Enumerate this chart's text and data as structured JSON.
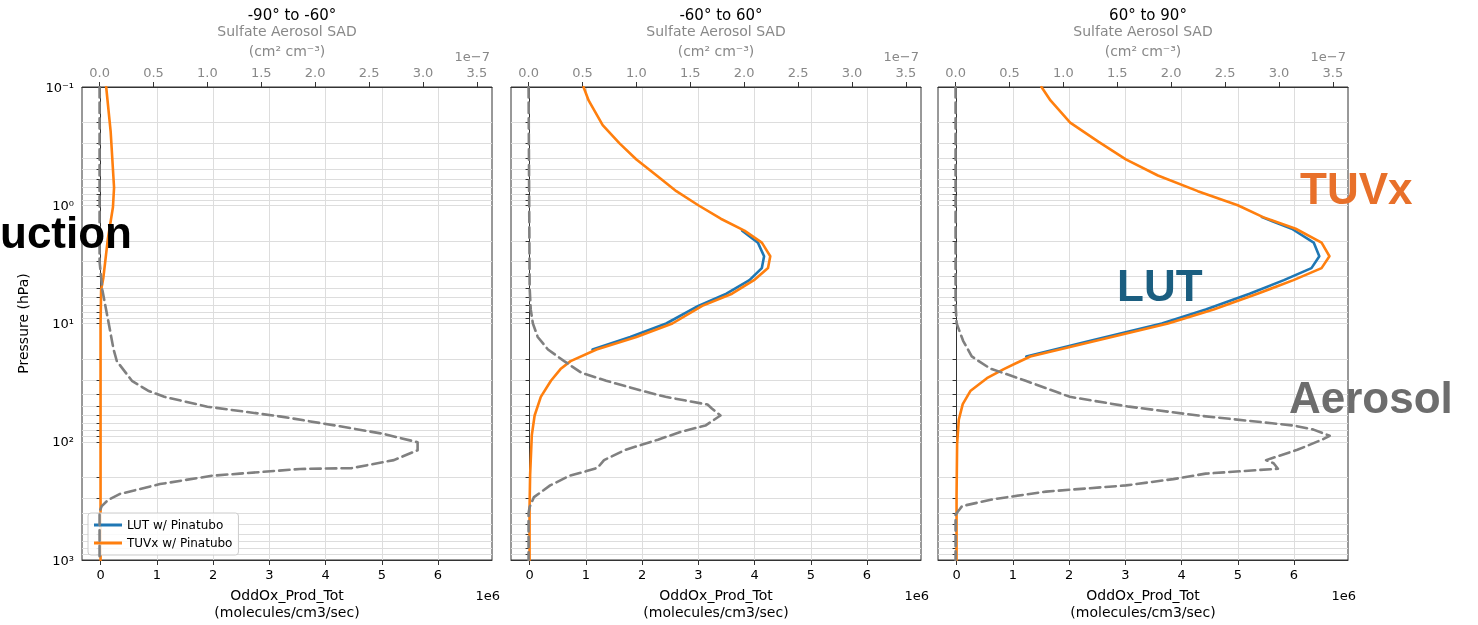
{
  "chart_data": [
    {
      "type": "line",
      "title": "-90° to -60°",
      "xlabel": "OddOx_Prod_Tot\n(molecules/cm3/sec)",
      "x2label": "Sulfate Aerosol SAD\n(cm² cm⁻³)",
      "ylabel": "Pressure (hPa)",
      "log": "y",
      "grid": true,
      "marker": "none",
      "legend": "bottom left",
      "xlim": [
        -0.33,
        6.96
      ],
      "xticks": [
        0,
        1,
        2,
        3,
        4,
        5,
        6
      ],
      "x2lim": [
        -0.163,
        3.64
      ],
      "x2ticks": [
        {
          "value": 0,
          "label": "0.0"
        },
        {
          "value": 0.5,
          "label": "0.5"
        },
        {
          "value": 1,
          "label": "1.0"
        },
        {
          "value": 1.5,
          "label": "1.5"
        },
        {
          "value": 2,
          "label": "2.0"
        },
        {
          "value": 2.5,
          "label": "2.5"
        },
        {
          "value": 3,
          "label": "3.0"
        },
        {
          "value": 3.5,
          "label": "3.5"
        }
      ],
      "ylim": [
        1000,
        0.1
      ],
      "yticks": [
        {
          "value": 0.1,
          "label": "10⁻¹"
        },
        {
          "value": 0.2,
          "label": null
        },
        {
          "value": 0.3,
          "label": null
        },
        {
          "value": 0.4,
          "label": null
        },
        {
          "value": 0.5,
          "label": null
        },
        {
          "value": 0.6,
          "label": null
        },
        {
          "value": 0.7,
          "label": null
        },
        {
          "value": 0.8,
          "label": null
        },
        {
          "value": 0.9,
          "label": null
        },
        {
          "value": 1,
          "label": "10⁰"
        },
        {
          "value": 2,
          "label": null
        },
        {
          "value": 3,
          "label": null
        },
        {
          "value": 4,
          "label": null
        },
        {
          "value": 5,
          "label": null
        },
        {
          "value": 6,
          "label": null
        },
        {
          "value": 7,
          "label": null
        },
        {
          "value": 8,
          "label": null
        },
        {
          "value": 9,
          "label": null
        },
        {
          "value": 10,
          "label": "10¹"
        },
        {
          "value": 20,
          "label": null
        },
        {
          "value": 30,
          "label": null
        },
        {
          "value": 40,
          "label": null
        },
        {
          "value": 50,
          "label": null
        },
        {
          "value": 60,
          "label": null
        },
        {
          "value": 70,
          "label": null
        },
        {
          "value": 80,
          "label": null
        },
        {
          "value": 90,
          "label": null
        },
        {
          "value": 100,
          "label": "10²"
        },
        {
          "value": 200,
          "label": null
        },
        {
          "value": 300,
          "label": null
        },
        {
          "value": 400,
          "label": null
        },
        {
          "value": 500,
          "label": null
        },
        {
          "value": 600,
          "label": null
        },
        {
          "value": 700,
          "label": null
        },
        {
          "value": 800,
          "label": null
        },
        {
          "value": 900,
          "label": null
        },
        {
          "value": 1000,
          "label": "10³"
        }
      ],
      "annotations": [
        "1e6",
        "1e−7",
        "uction"
      ],
      "series": [
        {
          "name": "LUT w/ Pinatubo",
          "color": "#1f77b4"
        },
        {
          "name": "TUVx w/ Pinatubo",
          "color": "#ff7f0e",
          "x": [
            0.1,
            0.18,
            0.24,
            0.22,
            0.13,
            0.05,
            0.01,
            0,
            0,
            0,
            0
          ],
          "values": [
            0.1,
            0.24,
            0.71,
            1.04,
            1.92,
            4.1,
            5.2,
            10,
            100,
            300,
            1000
          ]
        },
        {
          "color": "#808080",
          "axis": "x2",
          "line_style": "dashed",
          "x": [
            0,
            0,
            0.026,
            0.085,
            0.13,
            0.16,
            0.3,
            0.45,
            0.6,
            1.0,
            1.67,
            2.23,
            2.64,
            2.95,
            2.95,
            2.73,
            2.34,
            1.86,
            1.3,
            1.04,
            0.56,
            0.19,
            0.08,
            0.02,
            0,
            0
          ],
          "values": [
            0.1,
            3,
            5.2,
            10,
            16.6,
            20.8,
            30.5,
            37,
            41.7,
            50.5,
            61,
            74,
            86,
            101,
            118,
            143,
            167,
            170,
            186,
            194,
            228,
            276,
            310,
            350,
            390,
            1000
          ]
        }
      ]
    },
    {
      "type": "line",
      "title": "-60° to 60°",
      "xlabel": "OddOx_Prod_Tot\n(molecules/cm3/sec)",
      "x2label": "Sulfate Aerosol SAD\n(cm² cm⁻³)",
      "log": "y",
      "grid": true,
      "marker": "none",
      "tick_labels": "x",
      "xlim": [
        -0.33,
        6.96
      ],
      "xticks": [
        0,
        1,
        2,
        3,
        4,
        5,
        6
      ],
      "x2lim": [
        -0.163,
        3.64
      ],
      "x2ticks": [
        {
          "value": 0,
          "label": "0.0"
        },
        {
          "value": 0.5,
          "label": "0.5"
        },
        {
          "value": 1,
          "label": "1.0"
        },
        {
          "value": 1.5,
          "label": "1.5"
        },
        {
          "value": 2,
          "label": "2.0"
        },
        {
          "value": 2.5,
          "label": "2.5"
        },
        {
          "value": 3,
          "label": "3.0"
        },
        {
          "value": 3.5,
          "label": "3.5"
        }
      ],
      "ylim": [
        1000,
        0.1
      ],
      "yticks": [
        {
          "value": 0.1,
          "label": null
        },
        {
          "value": 0.2,
          "label": null
        },
        {
          "value": 0.3,
          "label": null
        },
        {
          "value": 0.4,
          "label": null
        },
        {
          "value": 0.5,
          "label": null
        },
        {
          "value": 0.6,
          "label": null
        },
        {
          "value": 0.7,
          "label": null
        },
        {
          "value": 0.8,
          "label": null
        },
        {
          "value": 0.9,
          "label": null
        },
        {
          "value": 1,
          "label": null
        },
        {
          "value": 2,
          "label": null
        },
        {
          "value": 3,
          "label": null
        },
        {
          "value": 4,
          "label": null
        },
        {
          "value": 5,
          "label": null
        },
        {
          "value": 6,
          "label": null
        },
        {
          "value": 7,
          "label": null
        },
        {
          "value": 8,
          "label": null
        },
        {
          "value": 9,
          "label": null
        },
        {
          "value": 10,
          "label": null
        },
        {
          "value": 20,
          "label": null
        },
        {
          "value": 30,
          "label": null
        },
        {
          "value": 40,
          "label": null
        },
        {
          "value": 50,
          "label": null
        },
        {
          "value": 60,
          "label": null
        },
        {
          "value": 70,
          "label": null
        },
        {
          "value": 80,
          "label": null
        },
        {
          "value": 90,
          "label": null
        },
        {
          "value": 100,
          "label": null
        },
        {
          "value": 200,
          "label": null
        },
        {
          "value": 300,
          "label": null
        },
        {
          "value": 400,
          "label": null
        },
        {
          "value": 500,
          "label": null
        },
        {
          "value": 600,
          "label": null
        },
        {
          "value": 700,
          "label": null
        },
        {
          "value": 800,
          "label": null
        },
        {
          "value": 900,
          "label": null
        },
        {
          "value": 1000,
          "label": null
        }
      ],
      "annotations": [
        "1e6",
        "1e−7"
      ],
      "series": [
        {
          "color": "#1f77b4",
          "x": [
            3.78,
            4.06,
            4.17,
            4.13,
            3.91,
            3.5,
            3.0,
            2.43,
            1.79,
            1.12
          ],
          "values": [
            1.64,
            2.07,
            2.7,
            3.4,
            4.3,
            5.6,
            7.1,
            10,
            13,
            16.6
          ]
        },
        {
          "color": "#ff7f0e",
          "x": [
            0.96,
            1.05,
            1.3,
            1.6,
            1.9,
            2.26,
            2.61,
            3.0,
            3.4,
            3.82,
            4.13,
            4.28,
            4.24,
            3.99,
            3.6,
            3.07,
            2.54,
            1.9,
            1.19,
            0.73,
            0.55,
            0.38,
            0.2,
            0.09,
            0.04,
            0.01,
            0,
            0
          ],
          "values": [
            0.1,
            0.13,
            0.21,
            0.3,
            0.41,
            0.56,
            0.76,
            1.0,
            1.3,
            1.64,
            2.07,
            2.7,
            3.4,
            4.3,
            5.6,
            7.1,
            10,
            13,
            16.6,
            20.8,
            24.3,
            30.5,
            41.7,
            60,
            88,
            190,
            356,
            1000
          ]
        },
        {
          "color": "#808080",
          "axis": "x2",
          "line_style": "dashed",
          "x": [
            0,
            0.01,
            0.02,
            0.04,
            0.085,
            0.18,
            0.33,
            0.49,
            0.72,
            1.05,
            1.27,
            1.66,
            1.7,
            1.78,
            1.64,
            1.42,
            1.2,
            0.9,
            0.7,
            0.64,
            0.53,
            0.38,
            0.2,
            0.05,
            0.01,
            0,
            0
          ],
          "values": [
            0.1,
            5,
            7.6,
            10,
            13,
            16.6,
            20.8,
            26.1,
            30.5,
            37,
            41.7,
            48.5,
            52.3,
            60,
            73,
            82,
            96,
            117,
            143,
            166,
            178,
            194,
            234,
            294,
            356,
            400,
            1000
          ]
        }
      ]
    },
    {
      "type": "line",
      "title": "60° to 90°",
      "xlabel": "OddOx_Prod_Tot\n(molecules/cm3/sec)",
      "x2label": "Sulfate Aerosol SAD\n(cm² cm⁻³)",
      "log": "y",
      "grid": true,
      "marker": "none",
      "tick_labels": "x",
      "xlim": [
        -0.33,
        6.96
      ],
      "xticks": [
        0,
        1,
        2,
        3,
        4,
        5,
        6
      ],
      "x2lim": [
        -0.163,
        3.64
      ],
      "x2ticks": [
        {
          "value": 0,
          "label": "0.0"
        },
        {
          "value": 0.5,
          "label": "0.5"
        },
        {
          "value": 1,
          "label": "1.0"
        },
        {
          "value": 1.5,
          "label": "1.5"
        },
        {
          "value": 2,
          "label": "2.0"
        },
        {
          "value": 2.5,
          "label": "2.5"
        },
        {
          "value": 3,
          "label": "3.0"
        },
        {
          "value": 3.5,
          "label": "3.5"
        }
      ],
      "ylim": [
        1000,
        0.1
      ],
      "yticks": [
        {
          "value": 0.1,
          "label": null
        },
        {
          "value": 0.2,
          "label": null
        },
        {
          "value": 0.3,
          "label": null
        },
        {
          "value": 0.4,
          "label": null
        },
        {
          "value": 0.5,
          "label": null
        },
        {
          "value": 0.6,
          "label": null
        },
        {
          "value": 0.7,
          "label": null
        },
        {
          "value": 0.8,
          "label": null
        },
        {
          "value": 0.9,
          "label": null
        },
        {
          "value": 1,
          "label": null
        },
        {
          "value": 2,
          "label": null
        },
        {
          "value": 3,
          "label": null
        },
        {
          "value": 4,
          "label": null
        },
        {
          "value": 5,
          "label": null
        },
        {
          "value": 6,
          "label": null
        },
        {
          "value": 7,
          "label": null
        },
        {
          "value": 8,
          "label": null
        },
        {
          "value": 9,
          "label": null
        },
        {
          "value": 10,
          "label": null
        },
        {
          "value": 20,
          "label": null
        },
        {
          "value": 30,
          "label": null
        },
        {
          "value": 40,
          "label": null
        },
        {
          "value": 50,
          "label": null
        },
        {
          "value": 60,
          "label": null
        },
        {
          "value": 70,
          "label": null
        },
        {
          "value": 80,
          "label": null
        },
        {
          "value": 90,
          "label": null
        },
        {
          "value": 100,
          "label": null
        },
        {
          "value": 200,
          "label": null
        },
        {
          "value": 300,
          "label": null
        },
        {
          "value": 400,
          "label": null
        },
        {
          "value": 500,
          "label": null
        },
        {
          "value": 600,
          "label": null
        },
        {
          "value": 700,
          "label": null
        },
        {
          "value": 800,
          "label": null
        },
        {
          "value": 900,
          "label": null
        },
        {
          "value": 1000,
          "label": null
        }
      ],
      "annotations": [
        "1e6",
        "1e−7",
        "TUVx",
        "LUT",
        "Aerosol"
      ],
      "series": [
        {
          "color": "#1f77b4",
          "x": [
            5.43,
            5.96,
            6.35,
            6.45,
            6.31,
            5.82,
            5.21,
            4.43,
            3.65,
            2.38,
            1.24
          ],
          "values": [
            1.26,
            1.58,
            2.07,
            2.7,
            3.4,
            4.3,
            5.6,
            7.6,
            10,
            14,
            19
          ]
        },
        {
          "color": "#ff7f0e",
          "x": [
            1.51,
            1.67,
            2.02,
            2.52,
            3.01,
            3.58,
            4.29,
            5.0,
            5.45,
            6.03,
            6.49,
            6.63,
            6.49,
            5.99,
            5.35,
            4.57,
            3.76,
            2.48,
            1.31,
            0.84,
            0.54,
            0.25,
            0.11,
            0.04,
            0.01,
            0,
            0
          ],
          "values": [
            0.1,
            0.13,
            0.2,
            0.29,
            0.41,
            0.56,
            0.76,
            1.0,
            1.26,
            1.58,
            2.07,
            2.7,
            3.4,
            4.3,
            5.6,
            7.6,
            10,
            14,
            19,
            24.3,
            29,
            37,
            48,
            65,
            104,
            283,
            1000
          ]
        },
        {
          "color": "#808080",
          "axis": "x2",
          "line_style": "dashed",
          "x": [
            0,
            0,
            0.01,
            0.07,
            0.15,
            0.32,
            0.65,
            1.06,
            1.61,
            2.25,
            3.14,
            3.32,
            3.47,
            3.4,
            3.17,
            2.88,
            2.95,
            2.99,
            2.32,
            2.02,
            1.58,
            0.84,
            0.35,
            0.06,
            0.04,
            0.02,
            0,
            0
          ],
          "values": [
            0.1,
            7,
            10,
            14,
            19,
            24,
            30.5,
            41.7,
            50.5,
            60,
            73,
            79,
            89,
            96,
            117,
            143,
            152,
            169,
            186,
            207,
            234,
            264,
            306,
            350,
            370,
            390,
            414,
            1000
          ]
        }
      ]
    }
  ]
}
